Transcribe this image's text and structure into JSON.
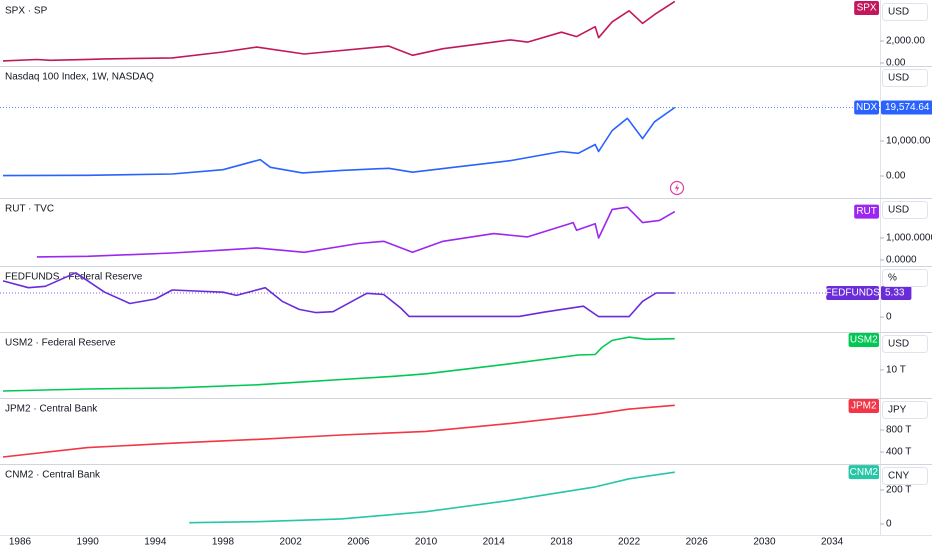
{
  "time_axis": {
    "xlim": [
      1984.82,
      2036.83
    ],
    "xticks": [
      1986,
      1990,
      1994,
      1998,
      2002,
      2006,
      2010,
      2014,
      2018,
      2022,
      2026,
      2030,
      2034
    ]
  },
  "chart_data": [
    {
      "type": "line",
      "title": "SPX · SP",
      "unit": "USD",
      "x": [
        1985,
        1987,
        1987.8,
        1990,
        1991,
        1995,
        1998,
        2000,
        2002.8,
        2007.8,
        2009.2,
        2011,
        2013,
        2015,
        2016,
        2018,
        2018.9,
        2020,
        2020.2,
        2021,
        2022,
        2022.8,
        2023.5,
        2024.7
      ],
      "series": [
        {
          "name": "SPX",
          "color": "#c2185b",
          "values": [
            190,
            320,
            250,
            330,
            380,
            470,
            1000,
            1450,
            820,
            1540,
            700,
            1300,
            1700,
            2100,
            1900,
            2800,
            2400,
            3300,
            2300,
            3750,
            4750,
            3600,
            4400,
            5600
          ]
        }
      ],
      "ylim": [
        -270,
        5730
      ],
      "yticks": [
        {
          "value": 2000,
          "label": "2,000.00"
        },
        {
          "value": 0,
          "label": "0.00"
        }
      ]
    },
    {
      "type": "line",
      "title": "Nasdaq 100 Index, 1W, NASDAQ",
      "unit": "USD",
      "show_last": true,
      "x": [
        1985,
        1990,
        1995,
        1998,
        2000.2,
        2000.8,
        2002.7,
        2005,
        2007.8,
        2009.2,
        2012,
        2015,
        2018,
        2019,
        2020,
        2020.2,
        2021,
        2021.9,
        2022.8,
        2023.5,
        2024.7
      ],
      "series": [
        {
          "name": "NDX",
          "color": "#2962ff",
          "values": [
            120,
            200,
            570,
            1800,
            4700,
            2500,
            900,
            1600,
            2200,
            1100,
            2700,
            4400,
            7000,
            6500,
            9000,
            7000,
            13000,
            16500,
            10700,
            15500,
            19574.64
          ],
          "value_labels": [
            null,
            null,
            null,
            null,
            null,
            null,
            null,
            null,
            null,
            null,
            null,
            null,
            null,
            null,
            null,
            null,
            null,
            null,
            null,
            null,
            "19,574.64"
          ]
        }
      ],
      "ylim": [
        -6286,
        31430
      ],
      "yticks": [
        {
          "value": 10000,
          "label": "10,000.00"
        },
        {
          "value": 0,
          "label": "0.00"
        }
      ]
    },
    {
      "type": "line",
      "title": "RUT · TVC",
      "unit": "USD",
      "x": [
        1987,
        1990,
        1995,
        1998,
        2000,
        2002.8,
        2006,
        2007.5,
        2009.2,
        2011,
        2014,
        2016,
        2018.7,
        2018.9,
        2020,
        2020.2,
        2021,
        2021.9,
        2022.8,
        2023.8,
        2024.7
      ],
      "series": [
        {
          "name": "RUT",
          "color": "#9c27f0",
          "values": [
            140,
            170,
            320,
            450,
            550,
            350,
            750,
            850,
            350,
            850,
            1200,
            1050,
            1700,
            1350,
            1650,
            1000,
            2300,
            2400,
            1700,
            1800,
            2200
          ]
        }
      ],
      "ylim": [
        -273,
        2818
      ],
      "yticks": [
        {
          "value": 1000,
          "label": "1,000.0000"
        },
        {
          "value": 0,
          "label": "0.0000"
        }
      ]
    },
    {
      "type": "line",
      "title": "FEDFUNDS · Federal Reserve",
      "unit": "%",
      "show_last": true,
      "x": [
        1985,
        1986.5,
        1987.5,
        1989.3,
        1991,
        1992.5,
        1994,
        1995,
        1998,
        1998.8,
        2000.5,
        2001.5,
        2002.5,
        2003.5,
        2004.5,
        2006.5,
        2007.5,
        2008.5,
        2009,
        2015.5,
        2017,
        2019.3,
        2020.2,
        2022,
        2022.8,
        2023.6,
        2024.7
      ],
      "series": [
        {
          "name": "FEDFUNDS",
          "color": "#6a2bd9",
          "values": [
            8,
            6.5,
            6.8,
            9.8,
            5.5,
            3,
            4,
            6,
            5.5,
            4.8,
            6.5,
            3.5,
            1.7,
            1,
            1.2,
            5.25,
            5,
            2,
            0.15,
            0.15,
            1.1,
            2.4,
            0.1,
            0.1,
            3.5,
            5.33,
            5.33
          ]
        }
      ],
      "ylim": [
        -3.3,
        11.3
      ],
      "yticks": [
        0
      ]
    },
    {
      "type": "line",
      "title": "USM2 · Federal Reserve",
      "unit": "USD",
      "x": [
        1985,
        1990,
        1995,
        2000,
        2005,
        2008,
        2010,
        2015,
        2019,
        2020,
        2020.4,
        2021,
        2022,
        2023,
        2024.7
      ],
      "series": [
        {
          "name": "USM2",
          "color": "#00c853",
          "values": [
            2.5,
            3.2,
            3.6,
            4.7,
            6.6,
            7.7,
            8.6,
            12.2,
            15.3,
            15.5,
            18,
            20.5,
            21.7,
            20.9,
            21.1
          ]
        }
      ],
      "ylim": [
        0,
        23.5
      ],
      "yticks": [
        {
          "value": 10,
          "label": "10 T"
        }
      ]
    },
    {
      "type": "line",
      "title": "JPM2 · Central Bank",
      "unit": "JPY",
      "x": [
        1985,
        1990,
        1995,
        2000,
        2005,
        2010,
        2015,
        2020,
        2022,
        2024.7
      ],
      "series": [
        {
          "name": "JPM2",
          "color": "#f23645",
          "values": [
            310,
            480,
            560,
            630,
            710,
            775,
            920,
            1090,
            1180,
            1250
          ]
        }
      ],
      "ylim": [
        182,
        1382
      ],
      "yticks": [
        {
          "value": 800,
          "label": "800 T"
        },
        {
          "value": 400,
          "label": "400 T"
        }
      ]
    },
    {
      "type": "line",
      "title": "CNM2 · Central Bank",
      "unit": "CNY",
      "x": [
        1996,
        2000,
        2005,
        2010,
        2015,
        2020,
        2022,
        2024.7
      ],
      "series": [
        {
          "name": "CNM2",
          "color": "#26c6a6",
          "values": [
            7.6,
            13.5,
            30,
            72,
            139,
            218,
            266,
            305
          ]
        }
      ],
      "ylim": [
        -65,
        353
      ],
      "yticks": [
        {
          "value": 200,
          "label": "200 T"
        },
        0
      ]
    }
  ]
}
